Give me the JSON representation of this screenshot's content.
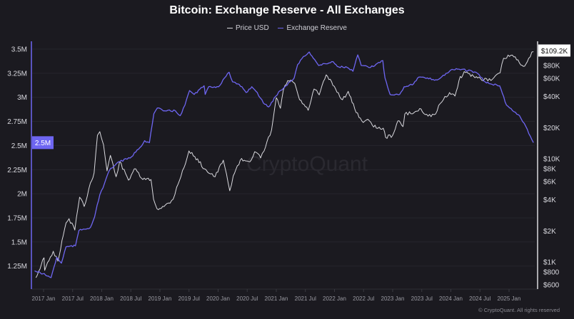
{
  "chart_data": {
    "type": "line",
    "title": "Bitcoin: Exchange Reserve - All Exchanges",
    "legend_position": "top",
    "grid": true,
    "watermark": "CryptoQuant",
    "footer": "© CryptoQuant. All rights reserved",
    "x_ticks": [
      "2017 Jan",
      "2017 Jul",
      "2018 Jan",
      "2018 Jul",
      "2019 Jan",
      "2019 Jul",
      "2020 Jan",
      "2020 Jul",
      "2021 Jan",
      "2021 Jul",
      "2022 Jan",
      "2022 Jul",
      "2023 Jan",
      "2023 Jul",
      "2024 Jan",
      "2024 Jul",
      "2025 Jan"
    ],
    "left_axis": {
      "ticks": [
        "1.25M",
        "1.5M",
        "1.75M",
        "2M",
        "2.25M",
        "2.5M",
        "2.75M",
        "3M",
        "3.25M",
        "3.5M"
      ],
      "tick_values": [
        1.25,
        1.5,
        1.75,
        2,
        2.25,
        2.5,
        2.75,
        3,
        3.25,
        3.5
      ],
      "scale": "linear",
      "range": [
        1.06,
        3.57
      ],
      "unit": "M",
      "current_label": "2.5M"
    },
    "right_axis": {
      "ticks": [
        "$600",
        "$800",
        "$1K",
        "$2K",
        "$4K",
        "$6K",
        "$8K",
        "$10K",
        "$20K",
        "$40K",
        "$60K",
        "$80K"
      ],
      "tick_values": [
        600,
        800,
        1000,
        2000,
        4000,
        6000,
        8000,
        10000,
        20000,
        40000,
        60000,
        80000
      ],
      "scale": "log",
      "current_label": "$109.2K"
    },
    "series": [
      {
        "name": "Price USD",
        "axis": "right",
        "color": "#d9d9de",
        "points": [
          [
            "2016-11-14",
            705
          ],
          [
            "2017-01-04",
            1100
          ],
          [
            "2017-01-08",
            830
          ],
          [
            "2017-03-03",
            1270
          ],
          [
            "2017-04-01",
            1020
          ],
          [
            "2017-05-22",
            2390
          ],
          [
            "2017-06-10",
            2630
          ],
          [
            "2017-07-16",
            2040
          ],
          [
            "2017-08-15",
            4240
          ],
          [
            "2017-09-13",
            3450
          ],
          [
            "2017-10-22",
            5830
          ],
          [
            "2017-11-14",
            7290
          ],
          [
            "2017-12-05",
            16900
          ],
          [
            "2017-12-20",
            18300
          ],
          [
            "2018-01-12",
            13700
          ],
          [
            "2018-02-03",
            7630
          ],
          [
            "2018-02-24",
            10800
          ],
          [
            "2018-04-01",
            6700
          ],
          [
            "2018-04-23",
            9370
          ],
          [
            "2018-06-18",
            6210
          ],
          [
            "2018-07-24",
            8000
          ],
          [
            "2018-09-16",
            6300
          ],
          [
            "2018-11-06",
            6300
          ],
          [
            "2018-11-22",
            4050
          ],
          [
            "2018-12-13",
            3290
          ],
          [
            "2019-01-27",
            3450
          ],
          [
            "2019-03-25",
            4050
          ],
          [
            "2019-04-16",
            5300
          ],
          [
            "2019-06-10",
            8930
          ],
          [
            "2019-07-02",
            11900
          ],
          [
            "2019-08-08",
            10500
          ],
          [
            "2019-10-08",
            8000
          ],
          [
            "2019-12-13",
            6700
          ],
          [
            "2020-02-03",
            9690
          ],
          [
            "2020-03-14",
            4900
          ],
          [
            "2020-04-05",
            6830
          ],
          [
            "2020-05-19",
            9690
          ],
          [
            "2020-07-27",
            9690
          ],
          [
            "2020-08-18",
            11700
          ],
          [
            "2020-09-24",
            10200
          ],
          [
            "2020-10-16",
            11900
          ],
          [
            "2020-12-02",
            18900
          ],
          [
            "2021-01-01",
            39000
          ],
          [
            "2021-01-27",
            30900
          ],
          [
            "2021-02-14",
            45900
          ],
          [
            "2021-03-14",
            57300
          ],
          [
            "2021-04-27",
            53700
          ],
          [
            "2021-05-27",
            37300
          ],
          [
            "2021-07-20",
            29500
          ],
          [
            "2021-08-26",
            47400
          ],
          [
            "2021-09-27",
            41600
          ],
          [
            "2021-11-10",
            65000
          ],
          [
            "2022-01-08",
            47400
          ],
          [
            "2022-02-20",
            37300
          ],
          [
            "2022-03-28",
            45000
          ],
          [
            "2022-05-08",
            30400
          ],
          [
            "2022-06-21",
            23300
          ],
          [
            "2022-08-08",
            23300
          ],
          [
            "2022-09-21",
            19800
          ],
          [
            "2022-11-03",
            19800
          ],
          [
            "2022-11-18",
            16100
          ],
          [
            "2023-01-01",
            16900
          ],
          [
            "2023-02-03",
            23300
          ],
          [
            "2023-03-07",
            20500
          ],
          [
            "2023-03-18",
            27100
          ],
          [
            "2023-05-15",
            28000
          ],
          [
            "2023-06-28",
            30400
          ],
          [
            "2023-08-11",
            25900
          ],
          [
            "2023-09-27",
            27100
          ],
          [
            "2023-10-27",
            34400
          ],
          [
            "2023-12-24",
            43800
          ],
          [
            "2024-01-27",
            40500
          ],
          [
            "2024-02-21",
            57300
          ],
          [
            "2024-03-25",
            70000
          ],
          [
            "2024-05-23",
            63000
          ],
          [
            "2024-07-05",
            60000
          ],
          [
            "2024-09-09",
            57300
          ],
          [
            "2024-11-06",
            68000
          ],
          [
            "2024-11-28",
            94000
          ],
          [
            "2025-01-22",
            101000
          ],
          [
            "2025-03-07",
            85000
          ],
          [
            "2025-04-01",
            78500
          ],
          [
            "2025-05-04",
            94000
          ],
          [
            "2025-06-03",
            109200
          ]
        ]
      },
      {
        "name": "Exchange Reserve",
        "axis": "left",
        "color": "#6e66f2",
        "points": [
          [
            "2016-11-06",
            1.2
          ],
          [
            "2016-12-28",
            1.17
          ],
          [
            "2017-02-17",
            1.13
          ],
          [
            "2017-03-25",
            1.34
          ],
          [
            "2017-04-23",
            1.28
          ],
          [
            "2017-05-22",
            1.45
          ],
          [
            "2017-07-20",
            1.46
          ],
          [
            "2017-08-11",
            1.62
          ],
          [
            "2017-10-22",
            1.65
          ],
          [
            "2017-11-17",
            1.76
          ],
          [
            "2017-12-20",
            1.99
          ],
          [
            "2018-01-19",
            2.11
          ],
          [
            "2018-02-17",
            2.24
          ],
          [
            "2018-04-15",
            2.33
          ],
          [
            "2018-06-28",
            2.37
          ],
          [
            "2018-08-29",
            2.48
          ],
          [
            "2018-09-27",
            2.55
          ],
          [
            "2018-10-27",
            2.53
          ],
          [
            "2018-11-24",
            2.83
          ],
          [
            "2018-12-16",
            2.89
          ],
          [
            "2019-01-22",
            2.86
          ],
          [
            "2019-04-08",
            2.86
          ],
          [
            "2019-05-08",
            2.81
          ],
          [
            "2019-06-07",
            2.92
          ],
          [
            "2019-07-06",
            3.07
          ],
          [
            "2019-08-04",
            3.03
          ],
          [
            "2019-10-05",
            3.12
          ],
          [
            "2019-10-12",
            3.03
          ],
          [
            "2019-11-03",
            3.11
          ],
          [
            "2020-01-04",
            3.11
          ],
          [
            "2020-02-10",
            3.2
          ],
          [
            "2020-03-10",
            3.26
          ],
          [
            "2020-04-01",
            3.16
          ],
          [
            "2020-05-30",
            3.11
          ],
          [
            "2020-06-25",
            3.05
          ],
          [
            "2020-07-31",
            3.11
          ],
          [
            "2020-09-03",
            3.05
          ],
          [
            "2020-10-12",
            2.94
          ],
          [
            "2020-11-14",
            2.9
          ],
          [
            "2020-12-28",
            3.01
          ],
          [
            "2021-01-26",
            3.07
          ],
          [
            "2021-04-23",
            3.2
          ],
          [
            "2021-05-15",
            3.34
          ],
          [
            "2021-06-10",
            3.4
          ],
          [
            "2021-07-20",
            3.46
          ],
          [
            "2021-07-27",
            3.47
          ],
          [
            "2021-09-24",
            3.33
          ],
          [
            "2021-12-24",
            3.37
          ],
          [
            "2022-01-19",
            3.32
          ],
          [
            "2022-03-22",
            3.31
          ],
          [
            "2022-04-27",
            3.27
          ],
          [
            "2022-05-27",
            3.44
          ],
          [
            "2022-06-18",
            3.33
          ],
          [
            "2022-08-15",
            3.31
          ],
          [
            "2022-10-31",
            3.38
          ],
          [
            "2022-11-14",
            3.2
          ],
          [
            "2022-12-16",
            3.03
          ],
          [
            "2023-02-14",
            3.03
          ],
          [
            "2023-03-14",
            3.11
          ],
          [
            "2023-05-12",
            3.14
          ],
          [
            "2023-06-14",
            3.21
          ],
          [
            "2023-10-08",
            3.18
          ],
          [
            "2024-01-08",
            3.29
          ],
          [
            "2024-03-10",
            3.29
          ],
          [
            "2024-06-07",
            3.26
          ],
          [
            "2024-08-04",
            3.16
          ],
          [
            "2024-09-06",
            3.14
          ],
          [
            "2024-11-03",
            3.12
          ],
          [
            "2024-12-16",
            2.92
          ],
          [
            "2025-02-02",
            2.85
          ],
          [
            "2025-03-08",
            2.81
          ],
          [
            "2025-04-16",
            2.7
          ],
          [
            "2025-06-03",
            2.53
          ]
        ]
      }
    ]
  }
}
